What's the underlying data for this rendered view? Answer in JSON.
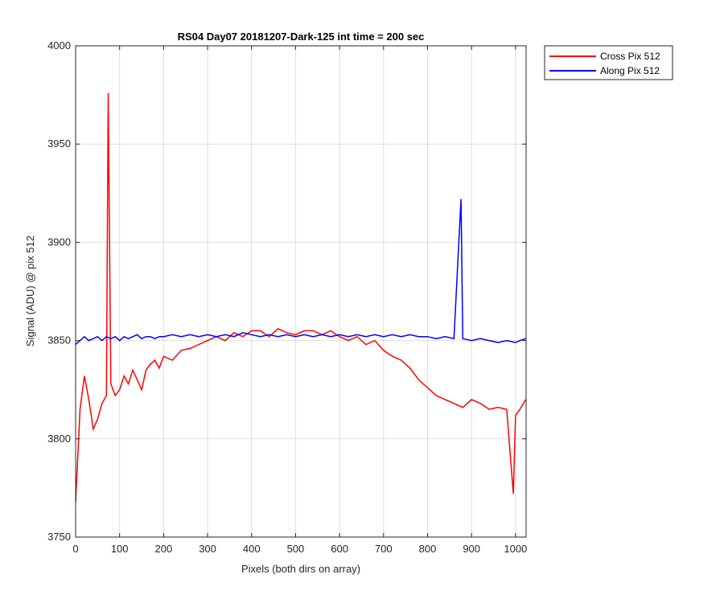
{
  "chart_data": {
    "type": "line",
    "title": "RS04 Day07 20181207-Dark-125 int time = 200 sec",
    "xlabel": "Pixels (both dirs on array)",
    "ylabel": "Signal (ADU) @ pix 512",
    "xlim": [
      0,
      1024
    ],
    "ylim": [
      3750,
      4000
    ],
    "xticks": [
      0,
      100,
      200,
      300,
      400,
      500,
      600,
      700,
      800,
      900,
      1000
    ],
    "yticks": [
      3750,
      3800,
      3850,
      3900,
      3950,
      4000
    ],
    "grid": true,
    "legend_position": "outside-top-right",
    "series": [
      {
        "name": "Cross Pix 512",
        "color": "#ff0000",
        "x": [
          0,
          10,
          20,
          30,
          40,
          50,
          60,
          70,
          74,
          80,
          90,
          100,
          110,
          120,
          130,
          140,
          150,
          160,
          170,
          180,
          190,
          200,
          220,
          240,
          260,
          280,
          300,
          320,
          340,
          360,
          380,
          400,
          420,
          440,
          460,
          480,
          500,
          520,
          540,
          560,
          580,
          600,
          620,
          640,
          660,
          680,
          700,
          720,
          740,
          760,
          780,
          800,
          820,
          840,
          860,
          880,
          900,
          920,
          940,
          960,
          980,
          995,
          1000,
          1010,
          1023
        ],
        "y": [
          3768,
          3815,
          3832,
          3820,
          3805,
          3810,
          3818,
          3822,
          3976,
          3828,
          3822,
          3825,
          3832,
          3828,
          3835,
          3830,
          3825,
          3835,
          3838,
          3840,
          3836,
          3842,
          3840,
          3845,
          3846,
          3848,
          3850,
          3852,
          3850,
          3854,
          3852,
          3855,
          3855,
          3852,
          3856,
          3854,
          3853,
          3855,
          3855,
          3853,
          3855,
          3852,
          3850,
          3852,
          3848,
          3850,
          3845,
          3842,
          3840,
          3836,
          3830,
          3826,
          3822,
          3820,
          3818,
          3816,
          3820,
          3818,
          3815,
          3816,
          3815,
          3772,
          3812,
          3815,
          3820
        ]
      },
      {
        "name": "Along Pix 512",
        "color": "#0000ff",
        "x": [
          0,
          10,
          20,
          30,
          40,
          50,
          60,
          70,
          80,
          90,
          100,
          110,
          120,
          130,
          140,
          150,
          160,
          170,
          180,
          190,
          200,
          220,
          240,
          260,
          280,
          300,
          320,
          340,
          360,
          380,
          400,
          420,
          440,
          460,
          480,
          500,
          520,
          540,
          560,
          580,
          600,
          620,
          640,
          660,
          680,
          700,
          720,
          740,
          760,
          780,
          800,
          820,
          840,
          860,
          876,
          880,
          900,
          920,
          940,
          960,
          980,
          1000,
          1010,
          1023
        ],
        "y": [
          3848,
          3850,
          3852,
          3850,
          3851,
          3852,
          3850,
          3852,
          3851,
          3852,
          3850,
          3852,
          3851,
          3852,
          3853,
          3851,
          3852,
          3852,
          3851,
          3852,
          3852,
          3853,
          3852,
          3853,
          3852,
          3853,
          3852,
          3853,
          3852,
          3854,
          3853,
          3852,
          3853,
          3852,
          3853,
          3852,
          3853,
          3852,
          3853,
          3852,
          3853,
          3852,
          3853,
          3852,
          3853,
          3852,
          3853,
          3852,
          3853,
          3852,
          3852,
          3851,
          3852,
          3851,
          3922,
          3851,
          3850,
          3851,
          3850,
          3849,
          3850,
          3849,
          3850,
          3851
        ]
      }
    ]
  }
}
